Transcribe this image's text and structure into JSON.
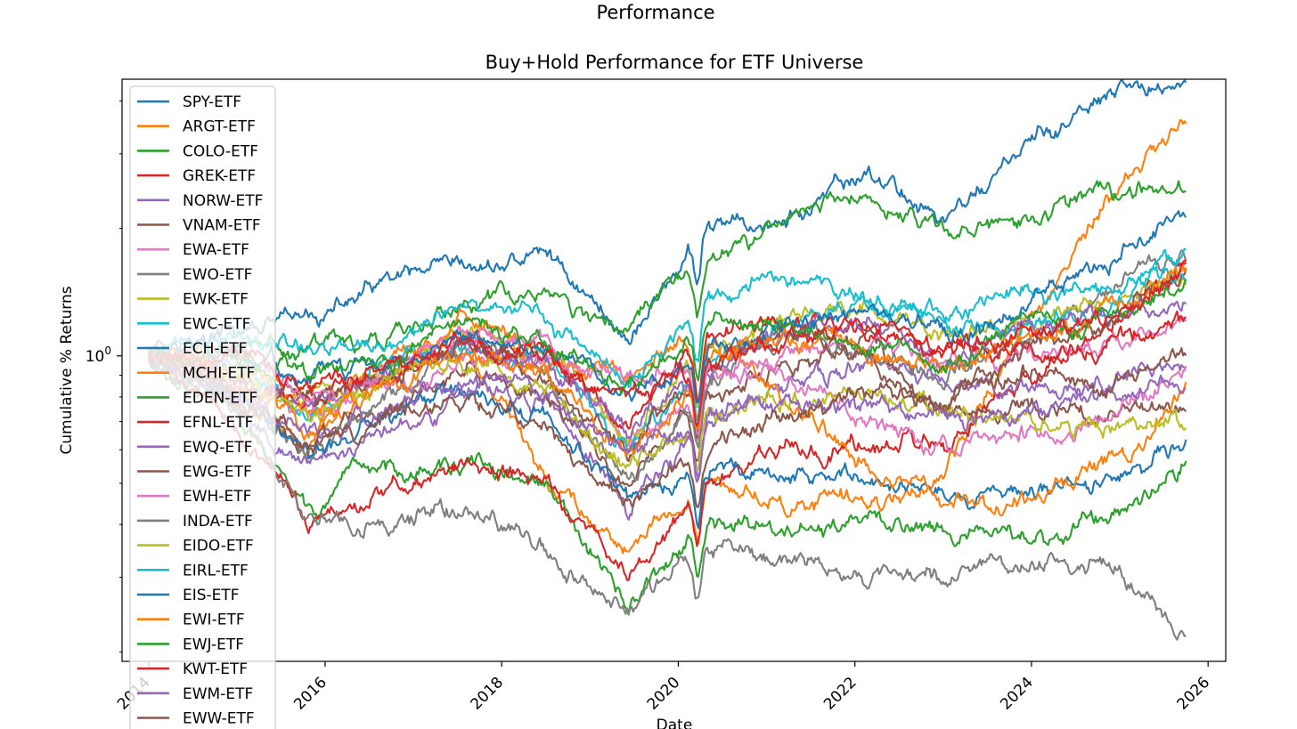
{
  "figure": {
    "suptitle": "Performance"
  },
  "chart_data": {
    "type": "line",
    "title": "Buy+Hold Performance for ETF Universe",
    "xlabel": "Date",
    "ylabel": "Cumulative % Returns",
    "x_tick_labels": [
      "2014",
      "2016",
      "2018",
      "2020",
      "2022",
      "2024",
      "2026"
    ],
    "y_tick_labels": [
      {
        "base": "10",
        "exp": "0"
      }
    ],
    "x_range": [
      2013.7,
      2026.2
    ],
    "y_scale": "log",
    "y_range": [
      0.19,
      4.5
    ],
    "grid": false,
    "legend_position": "upper-left",
    "x_start": 2014.0,
    "x_end": 2025.75,
    "key_dates": {
      "covid_crash": 2020.2,
      "post_covid_low": 2020.9,
      "bear_2022": 2022.75
    },
    "series": [
      {
        "name": "SPY-ETF",
        "color": "#1f77b4",
        "values": [
          1.0,
          1.12,
          1.2,
          1.48,
          1.55,
          1.75,
          1.1,
          2.0,
          2.05,
          2.7,
          2.1,
          3.1,
          4.0,
          4.45
        ]
      },
      {
        "name": "ARGT-ETF",
        "color": "#ff7f0e",
        "values": [
          1.0,
          0.85,
          0.62,
          0.95,
          1.0,
          0.52,
          0.35,
          0.5,
          0.45,
          0.45,
          0.52,
          1.2,
          2.3,
          3.6
        ]
      },
      {
        "name": "COLO-ETF",
        "color": "#2ca02c",
        "values": [
          1.0,
          0.75,
          0.42,
          0.55,
          0.55,
          0.48,
          0.25,
          0.4,
          0.38,
          0.4,
          0.4,
          0.36,
          0.42,
          0.57
        ]
      },
      {
        "name": "GREK-ETF",
        "color": "#d62728",
        "values": [
          1.0,
          0.75,
          0.4,
          0.48,
          0.55,
          0.5,
          0.3,
          0.5,
          0.6,
          0.62,
          0.6,
          0.85,
          1.2,
          1.6
        ]
      },
      {
        "name": "NORW-ETF",
        "color": "#9467bd",
        "values": [
          1.0,
          0.8,
          0.55,
          0.7,
          0.8,
          0.78,
          0.45,
          0.7,
          0.85,
          0.95,
          0.85,
          0.85,
          0.85,
          0.93
        ]
      },
      {
        "name": "VNAM-ETF",
        "color": "#8c564b",
        "values": [
          1.0,
          0.8,
          0.62,
          0.75,
          0.9,
          0.8,
          0.5,
          0.8,
          0.95,
          1.1,
          0.7,
          0.75,
          0.7,
          0.75
        ]
      },
      {
        "name": "EWA-ETF",
        "color": "#e377c2",
        "values": [
          1.0,
          0.9,
          0.7,
          0.85,
          0.95,
          1.0,
          0.6,
          0.85,
          1.0,
          1.05,
          0.95,
          1.0,
          1.05,
          1.25
        ]
      },
      {
        "name": "EWO-ETF",
        "color": "#7f7f7f",
        "values": [
          1.0,
          0.85,
          0.6,
          0.8,
          1.05,
          0.9,
          0.5,
          0.9,
          1.15,
          1.0,
          0.9,
          1.1,
          1.4,
          1.75
        ]
      },
      {
        "name": "EWK-ETF",
        "color": "#bcbd22",
        "values": [
          1.0,
          0.92,
          0.8,
          0.95,
          1.15,
          1.05,
          0.65,
          1.05,
          1.25,
          1.3,
          1.1,
          1.2,
          1.35,
          1.55
        ]
      },
      {
        "name": "EWC-ETF",
        "color": "#17becf",
        "values": [
          1.0,
          0.95,
          0.72,
          0.95,
          1.05,
          1.0,
          0.6,
          0.95,
          1.2,
          1.35,
          1.15,
          1.2,
          1.3,
          1.7
        ]
      },
      {
        "name": "ECH-ETF",
        "color": "#1f77b4",
        "values": [
          1.0,
          0.85,
          0.58,
          0.72,
          0.88,
          0.7,
          0.45,
          0.55,
          0.5,
          0.5,
          0.48,
          0.48,
          0.52,
          0.62
        ]
      },
      {
        "name": "MCHI-ETF",
        "color": "#ff7f0e",
        "values": [
          1.0,
          1.0,
          0.75,
          0.9,
          1.25,
          0.95,
          0.9,
          1.05,
          0.8,
          0.55,
          0.45,
          0.45,
          0.55,
          0.85
        ]
      },
      {
        "name": "EDEN-ETF",
        "color": "#2ca02c",
        "values": [
          1.0,
          1.05,
          1.05,
          1.1,
          1.4,
          1.35,
          1.2,
          1.7,
          2.1,
          2.4,
          1.9,
          2.1,
          2.4,
          2.35
        ]
      },
      {
        "name": "EFNL-ETF",
        "color": "#d62728",
        "values": [
          1.0,
          0.9,
          0.8,
          0.9,
          1.1,
          1.0,
          0.7,
          1.1,
          1.25,
          1.2,
          1.0,
          1.0,
          1.05,
          1.25
        ]
      },
      {
        "name": "EWQ-ETF",
        "color": "#9467bd",
        "values": [
          1.0,
          0.9,
          0.8,
          0.9,
          1.1,
          0.95,
          0.65,
          0.95,
          1.15,
          1.2,
          1.0,
          1.15,
          1.25,
          1.35
        ]
      },
      {
        "name": "EWG-ETF",
        "color": "#8c564b",
        "values": [
          1.0,
          0.85,
          0.78,
          0.85,
          1.1,
          0.85,
          0.6,
          0.95,
          1.15,
          1.0,
          0.75,
          1.05,
          1.2,
          1.55
        ]
      },
      {
        "name": "EWH-ETF",
        "color": "#e377c2",
        "values": [
          1.0,
          1.0,
          0.8,
          0.95,
          1.2,
          1.05,
          0.85,
          0.95,
          0.9,
          0.7,
          0.6,
          0.65,
          0.7,
          0.95
        ]
      },
      {
        "name": "INDA-ETF",
        "color": "#7f7f7f",
        "values": [
          1.0,
          0.8,
          0.42,
          0.4,
          0.45,
          0.35,
          0.25,
          0.35,
          0.33,
          0.31,
          0.3,
          0.32,
          0.33,
          0.22
        ]
      },
      {
        "name": "EIDO-ETF",
        "color": "#bcbd22",
        "values": [
          1.0,
          0.9,
          0.7,
          0.88,
          0.98,
          0.85,
          0.55,
          0.72,
          0.8,
          0.82,
          0.75,
          0.7,
          0.68,
          0.72
        ]
      },
      {
        "name": "EIRL-ETF",
        "color": "#17becf",
        "values": [
          1.0,
          1.1,
          1.0,
          1.1,
          1.3,
          1.2,
          0.85,
          1.4,
          1.55,
          1.35,
          1.2,
          1.4,
          1.45,
          1.55
        ]
      },
      {
        "name": "EIS-ETF",
        "color": "#1f77b4",
        "values": [
          1.0,
          1.0,
          0.9,
          0.95,
          1.1,
          1.05,
          0.8,
          1.0,
          1.2,
          1.25,
          1.1,
          1.3,
          1.7,
          2.2
        ]
      },
      {
        "name": "EWI-ETF",
        "color": "#ff7f0e",
        "values": [
          1.0,
          0.9,
          0.7,
          0.85,
          1.0,
          0.9,
          0.6,
          0.95,
          1.1,
          1.05,
          0.95,
          1.1,
          1.3,
          1.55
        ]
      },
      {
        "name": "EWJ-ETF",
        "color": "#2ca02c",
        "values": [
          1.0,
          1.0,
          0.9,
          1.0,
          1.2,
          1.1,
          0.85,
          1.15,
          1.2,
          1.05,
          0.95,
          1.15,
          1.2,
          1.5
        ]
      },
      {
        "name": "KWT-ETF",
        "color": "#d62728",
        "values": [
          1.0,
          0.95,
          0.85,
          0.95,
          1.05,
          1.0,
          0.75,
          0.95,
          1.1,
          1.15,
          1.05,
          1.1,
          1.15,
          1.6
        ]
      },
      {
        "name": "EWM-ETF",
        "color": "#9467bd",
        "values": [
          1.0,
          0.85,
          0.65,
          0.75,
          0.85,
          0.8,
          0.6,
          0.7,
          0.75,
          0.75,
          0.7,
          0.72,
          0.8,
          0.88
        ]
      },
      {
        "name": "EWW-ETF",
        "color": "#8c564b",
        "values": [
          1.0,
          0.8,
          0.62,
          0.7,
          0.78,
          0.7,
          0.45,
          0.62,
          0.72,
          0.8,
          0.75,
          0.92,
          0.85,
          1.0
        ]
      }
    ]
  }
}
